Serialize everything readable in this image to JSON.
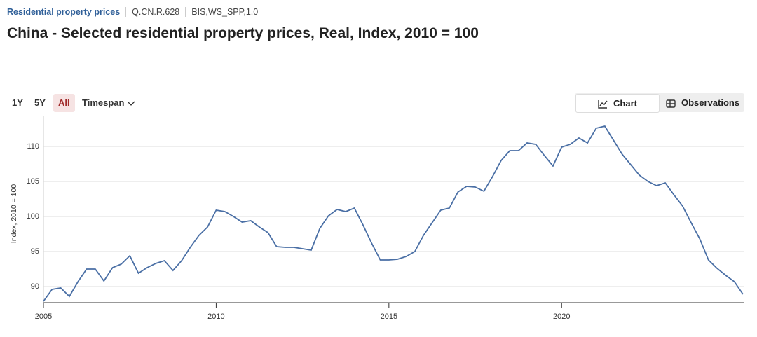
{
  "header": {
    "breadcrumb": [
      "Residential property prices",
      "Q.CN.R.628",
      "BIS,WS_SPP,1.0"
    ],
    "title": "China - Selected residential property prices, Real, Index, 2010 = 100"
  },
  "controls": {
    "ranges": [
      "1Y",
      "5Y",
      "All"
    ],
    "timespan": "Timespan",
    "views": [
      "Chart",
      "Observations"
    ]
  },
  "chart_data": {
    "type": "line",
    "y_label": "Index, 2010 = 100",
    "x": [
      2005,
      2005.25,
      2005.5,
      2005.75,
      2006,
      2006.25,
      2006.5,
      2006.75,
      2007,
      2007.25,
      2007.5,
      2007.75,
      2008,
      2008.25,
      2008.5,
      2008.75,
      2009,
      2009.25,
      2009.5,
      2009.75,
      2010,
      2010.25,
      2010.5,
      2010.75,
      2011,
      2011.25,
      2011.5,
      2011.75,
      2012,
      2012.25,
      2012.5,
      2012.75,
      2013,
      2013.25,
      2013.5,
      2013.75,
      2014,
      2014.25,
      2014.5,
      2014.75,
      2015,
      2015.25,
      2015.5,
      2015.75,
      2016,
      2016.25,
      2016.5,
      2016.75,
      2017,
      2017.25,
      2017.5,
      2017.75,
      2018,
      2018.25,
      2018.5,
      2018.75,
      2019,
      2019.25,
      2019.5,
      2019.75,
      2020,
      2020.25,
      2020.5,
      2020.75,
      2021,
      2021.25,
      2021.5,
      2021.75,
      2022,
      2022.25,
      2022.5,
      2022.75,
      2023,
      2023.25,
      2023.5,
      2023.75,
      2024,
      2024.25,
      2024.5,
      2024.75,
      2025,
      2025.25
    ],
    "series": [
      {
        "name": "China",
        "color": "#4a6fa5",
        "values": [
          87.9,
          89.6,
          89.8,
          88.6,
          90.7,
          92.5,
          92.5,
          90.8,
          92.7,
          93.2,
          94.4,
          91.9,
          92.7,
          93.3,
          93.7,
          92.3,
          93.7,
          95.6,
          97.3,
          98.5,
          100.9,
          100.7,
          100.0,
          99.2,
          99.4,
          98.5,
          97.7,
          95.7,
          95.6,
          95.6,
          95.4,
          95.2,
          98.3,
          100.1,
          101.0,
          100.7,
          101.2,
          98.8,
          96.2,
          93.8,
          93.8,
          93.9,
          94.3,
          95.0,
          97.3,
          99.1,
          100.9,
          101.2,
          103.5,
          104.3,
          104.2,
          103.6,
          105.7,
          108.0,
          109.4,
          109.4,
          110.5,
          110.3,
          108.7,
          107.2,
          109.9,
          110.3,
          111.2,
          110.5,
          112.6,
          112.9,
          110.9,
          108.9,
          107.4,
          105.9,
          105.0,
          104.4,
          104.8,
          103.1,
          101.5,
          99.1,
          96.8,
          93.8,
          92.6,
          91.6,
          90.7,
          88.9
        ]
      }
    ],
    "xlim": [
      2005,
      2025.25
    ],
    "xticks": [
      2005,
      2010,
      2015,
      2020
    ],
    "ylim": [
      87.8,
      114.4
    ],
    "yticks": [
      90,
      95,
      100,
      105,
      110
    ],
    "grid": true
  }
}
